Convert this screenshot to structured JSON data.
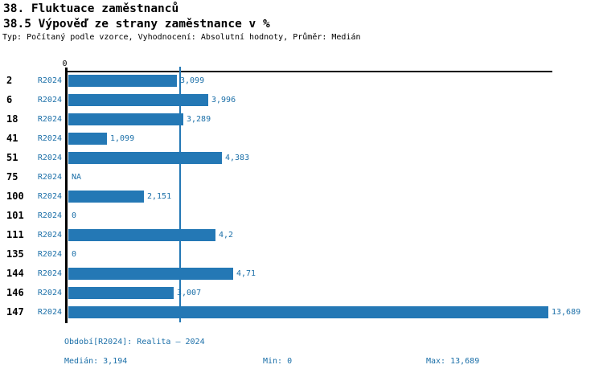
{
  "header": {
    "title": "38. Fluktuace zaměstnanců",
    "subtitle": "38.5 Výpověď ze strany zaměstnance v %",
    "meta": "Typ: Počítaný podle vzorce, Vyhodnocení: Absolutní hodnoty, Průměr: Medián"
  },
  "colors": {
    "bar": "#2478b5",
    "accent_text": "#1b6fa8",
    "axis": "#000000"
  },
  "chart_data": {
    "type": "bar",
    "orientation": "horizontal",
    "title": "38.5 Výpověď ze strany zaměstnance v %",
    "categories": [
      "2",
      "6",
      "18",
      "41",
      "51",
      "75",
      "100",
      "101",
      "111",
      "135",
      "144",
      "146",
      "147"
    ],
    "series": [
      {
        "name": "R2024",
        "values": [
          3.099,
          3.996,
          3.289,
          1.099,
          4.383,
          null,
          2.151,
          0,
          4.2,
          0,
          4.71,
          3.007,
          13.689
        ]
      }
    ],
    "value_labels": [
      "3,099",
      "3,996",
      "3,289",
      "1,099",
      "4,383",
      "NA",
      "2,151",
      "0",
      "4,2",
      "0",
      "4,71",
      "3,007",
      "13,689"
    ],
    "period_label": "R2024",
    "axis_zero_label": "0",
    "xlim": [
      0,
      13.689
    ],
    "median": 3.194,
    "median_line": true,
    "grid": false,
    "legend": false
  },
  "footer": {
    "period": "Období[R2024]: Realita – 2024",
    "median": "Medián: 3,194",
    "min": "Min: 0",
    "max": "Max: 13,689"
  }
}
